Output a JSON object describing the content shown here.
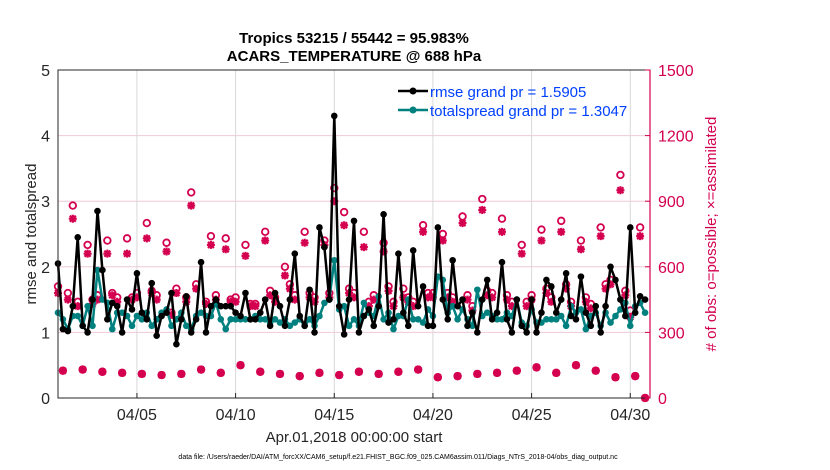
{
  "chart_data": {
    "type": "line",
    "title": "Tropics 53215 / 55442 = 95.983%",
    "subtitle": "ACARS_TEMPERATURE @ 688 hPa",
    "xlabel": "Apr.01,2018 00:00:00 start",
    "ylabel": "rmse and totalspread",
    "ylabel_right": "# of obs: o=possible; ×=assimilated",
    "footer": "data file: /Users/raeder/DAI/ATM_forcXX/CAM6_setup/f.e21.FHIST_BGC.f09_025.CAM6assim.011/Diags_NTrS_2018-04/obs_diag_output.nc",
    "x_start": "2018-04-01 00:00",
    "x_step_hours": 6,
    "xlim_days": [
      1,
      31
    ],
    "x_ticks": [
      {
        "day": 5,
        "label": "04/05"
      },
      {
        "day": 10,
        "label": "04/10"
      },
      {
        "day": 15,
        "label": "04/15"
      },
      {
        "day": 20,
        "label": "04/20"
      },
      {
        "day": 25,
        "label": "04/25"
      },
      {
        "day": 30,
        "label": "04/30"
      }
    ],
    "ylim": [
      0,
      5
    ],
    "y_ticks": [
      "0",
      "1",
      "2",
      "3",
      "4",
      "5"
    ],
    "ylim_right": [
      0,
      1500
    ],
    "y_ticks_right": [
      "0",
      "300",
      "600",
      "900",
      "1200",
      "1500"
    ],
    "grid": true,
    "legend_placement": "top-right",
    "colors": {
      "rmse": "#000000",
      "totalspread": "#00807f",
      "obs": "#d4004f",
      "legend_text": "#0040ff",
      "grid_h": "#f0c8d8",
      "grid_v": "#d8d8d8"
    },
    "series": [
      {
        "name": "rmse grand pr = 1.5905",
        "axis": "left",
        "marker": "filled-circle",
        "values": [
          2.05,
          1.05,
          1.02,
          1.4,
          2.45,
          1.1,
          1.0,
          1.5,
          2.85,
          1.95,
          1.2,
          1.45,
          1.4,
          1.0,
          1.5,
          1.35,
          1.9,
          1.3,
          1.2,
          1.75,
          0.95,
          1.25,
          1.3,
          1.6,
          0.82,
          1.2,
          1.55,
          1.0,
          1.2,
          2.07,
          1.0,
          1.4,
          1.5,
          1.4,
          1.4,
          1.4,
          1.3,
          1.25,
          1.6,
          1.2,
          1.2,
          1.3,
          1.5,
          1.1,
          1.6,
          1.4,
          1.1,
          1.5,
          2.2,
          1.25,
          1.1,
          1.65,
          1.0,
          2.6,
          2.3,
          1.5,
          4.3,
          1.4,
          0.97,
          1.5,
          2.7,
          1.0,
          1.25,
          1.35,
          1.1,
          1.4,
          2.8,
          1.15,
          1.2,
          2.2,
          1.3,
          1.1,
          2.25,
          1.4,
          1.7,
          1.1,
          1.1,
          2.6,
          1.5,
          1.2,
          2.1,
          1.4,
          1.5,
          1.1,
          1.3,
          1.0,
          1.5,
          1.8,
          1.2,
          1.3,
          2.07,
          1.2,
          1.0,
          1.5,
          1.1,
          1.0,
          1.5,
          1.0,
          1.3,
          1.8,
          1.7,
          1.3,
          1.5,
          1.9,
          1.25,
          1.2,
          1.85,
          1.3,
          1.1,
          1.4,
          1.0,
          1.4,
          2.0,
          1.8,
          1.5,
          1.25,
          2.6,
          1.3,
          1.55,
          1.5
        ]
      },
      {
        "name": "totalspread grand pr = 1.3047",
        "axis": "left",
        "marker": "filled-circle",
        "values": [
          1.3,
          1.2,
          1.05,
          1.25,
          1.25,
          1.1,
          1.4,
          1.1,
          1.95,
          1.5,
          1.45,
          1.05,
          1.3,
          1.3,
          1.25,
          1.1,
          1.25,
          1.2,
          1.3,
          1.1,
          1.2,
          1.3,
          1.35,
          1.1,
          1.2,
          1.3,
          1.1,
          1.05,
          1.25,
          1.3,
          1.25,
          1.25,
          1.45,
          1.2,
          1.05,
          1.2,
          1.2,
          1.2,
          1.2,
          1.2,
          1.25,
          1.2,
          1.2,
          1.15,
          1.2,
          1.15,
          1.2,
          1.1,
          1.15,
          1.2,
          1.1,
          1.2,
          1.1,
          1.25,
          1.45,
          1.5,
          2.1,
          1.35,
          1.4,
          1.1,
          1.2,
          1.1,
          1.45,
          1.3,
          1.25,
          1.55,
          1.2,
          1.3,
          1.05,
          1.25,
          1.25,
          1.5,
          1.2,
          1.2,
          1.15,
          1.35,
          1.25,
          1.85,
          1.8,
          1.3,
          1.4,
          1.2,
          1.35,
          1.2,
          1.1,
          1.65,
          1.25,
          1.3,
          1.25,
          1.2,
          1.2,
          1.3,
          1.25,
          1.5,
          1.15,
          1.1,
          1.35,
          1.15,
          1.15,
          1.2,
          1.2,
          1.2,
          1.25,
          1.1,
          1.4,
          1.3,
          1.35,
          1.05,
          1.25,
          1.3,
          1.1,
          1.3,
          1.15,
          1.25,
          1.35,
          1.45,
          1.1,
          1.4,
          1.45,
          1.3
        ]
      },
      {
        "name": "possible",
        "axis": "right",
        "marker": "open-circle",
        "values": [
          510,
          125,
          480,
          880,
          440,
          130,
          700,
          450,
          470,
          120,
          720,
          480,
          460,
          115,
          730,
          460,
          480,
          110,
          800,
          490,
          470,
          105,
          710,
          390,
          500,
          110,
          460,
          940,
          520,
          130,
          440,
          740,
          470,
          115,
          730,
          450,
          460,
          150,
          700,
          430,
          430,
          120,
          760,
          490,
          460,
          110,
          600,
          520,
          470,
          100,
          760,
          480,
          460,
          115,
          720,
          480,
          960,
          105,
          850,
          500,
          480,
          120,
          760,
          440,
          470,
          110,
          710,
          510,
          440,
          120,
          500,
          460,
          440,
          130,
          790,
          480,
          480,
          95,
          750,
          480,
          460,
          100,
          830,
          470,
          420,
          110,
          910,
          490,
          480,
          115,
          820,
          470,
          440,
          125,
          700,
          440,
          470,
          140,
          770,
          500,
          460,
          115,
          810,
          520,
          440,
          150,
          720,
          460,
          430,
          125,
          780,
          520,
          540,
          95,
          1020,
          490,
          400,
          100,
          780,
          0
        ]
      },
      {
        "name": "assimilated",
        "axis": "right",
        "marker": "asterisk",
        "values": [
          480,
          125,
          450,
          820,
          420,
          130,
          660,
          430,
          450,
          120,
          660,
          470,
          440,
          115,
          660,
          450,
          460,
          110,
          730,
          480,
          450,
          105,
          670,
          380,
          480,
          110,
          440,
          880,
          500,
          130,
          430,
          700,
          450,
          115,
          680,
          440,
          440,
          150,
          650,
          420,
          420,
          120,
          720,
          470,
          440,
          110,
          560,
          500,
          450,
          100,
          710,
          460,
          440,
          115,
          700,
          460,
          900,
          105,
          790,
          480,
          460,
          120,
          690,
          420,
          450,
          110,
          670,
          490,
          420,
          120,
          460,
          440,
          420,
          130,
          760,
          460,
          460,
          95,
          720,
          460,
          440,
          100,
          800,
          450,
          400,
          110,
          860,
          470,
          460,
          115,
          760,
          450,
          420,
          125,
          660,
          420,
          450,
          140,
          720,
          480,
          440,
          115,
          760,
          500,
          420,
          150,
          680,
          440,
          410,
          125,
          740,
          500,
          520,
          95,
          950,
          470,
          370,
          100,
          740,
          0
        ]
      }
    ]
  }
}
